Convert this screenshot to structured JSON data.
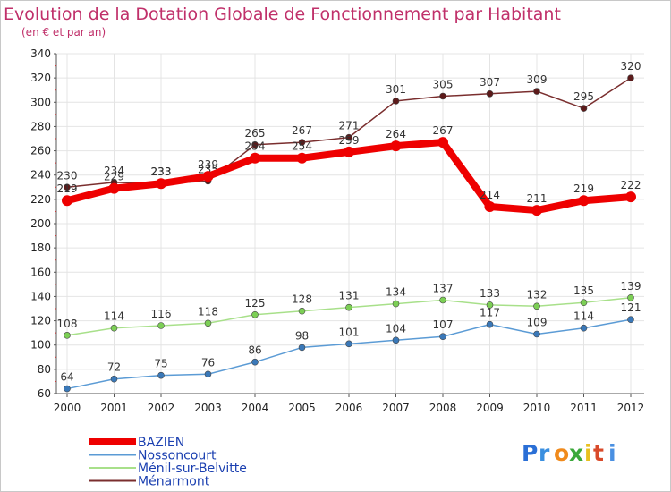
{
  "chart_data": {
    "type": "line",
    "title": "Evolution de la Dotation Globale de Fonctionnement par Habitant",
    "subtitle": "(en € et par an)",
    "xlabel": "",
    "ylabel": "",
    "categories": [
      "2000",
      "2001",
      "2002",
      "2003",
      "2004",
      "2005",
      "2006",
      "2007",
      "2008",
      "2009",
      "2010",
      "2011",
      "2012"
    ],
    "ylim": [
      60,
      340
    ],
    "yticks": [
      60,
      80,
      100,
      120,
      140,
      160,
      180,
      200,
      220,
      240,
      260,
      280,
      300,
      320,
      340
    ],
    "grid": true,
    "legend_position": "bottom-left",
    "series": [
      {
        "name": "Ménarmont",
        "color": "#7a2e2e",
        "point_color": "#5c1a1a",
        "style": "thin",
        "values": [
          230,
          234,
          233,
          235,
          265,
          267,
          271,
          301,
          305,
          307,
          309,
          295,
          320
        ]
      },
      {
        "name": "Nossoncourt",
        "color": "#5b9bd5",
        "point_color": "#3a78b8",
        "style": "thin",
        "values": [
          64,
          72,
          75,
          76,
          86,
          98,
          101,
          104,
          107,
          117,
          109,
          114,
          121
        ]
      },
      {
        "name": "Ménil-sur-Belvitte",
        "color": "#a8e08a",
        "point_color": "#7ccf55",
        "style": "thin",
        "values": [
          108,
          114,
          116,
          118,
          125,
          128,
          131,
          134,
          137,
          133,
          132,
          135,
          139
        ]
      },
      {
        "name": "BAZIEN",
        "color": "#ee0000",
        "point_color": "#ee0000",
        "style": "thick",
        "values": [
          219,
          229,
          233,
          239,
          254,
          254,
          259,
          264,
          267,
          214,
          211,
          219,
          222
        ]
      }
    ],
    "legend": [
      "BAZIEN",
      "Nossoncourt",
      "Ménil-sur-Belvitte",
      "Ménarmont"
    ]
  },
  "logo": {
    "text": "Proxiti"
  }
}
